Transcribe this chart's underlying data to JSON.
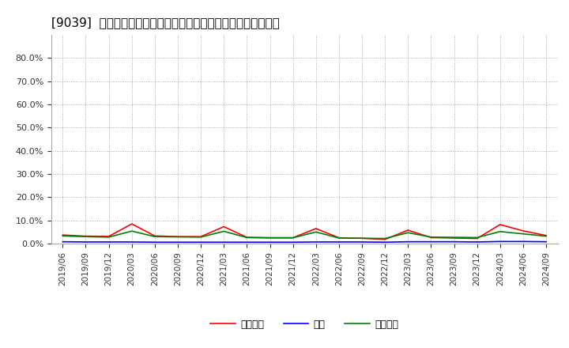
{
  "title": "[9039]  売上債権、在庫、買入債務の総資産に対する比率の推移",
  "x_labels": [
    "2019/06",
    "2019/09",
    "2019/12",
    "2020/03",
    "2020/06",
    "2020/09",
    "2020/12",
    "2021/03",
    "2021/06",
    "2021/09",
    "2021/12",
    "2022/03",
    "2022/06",
    "2022/09",
    "2022/12",
    "2023/03",
    "2023/06",
    "2023/09",
    "2023/12",
    "2024/03",
    "2024/06",
    "2024/09"
  ],
  "uriken": [
    0.037,
    0.032,
    0.031,
    0.085,
    0.033,
    0.03,
    0.03,
    0.073,
    0.027,
    0.025,
    0.025,
    0.065,
    0.025,
    0.023,
    0.018,
    0.058,
    0.026,
    0.024,
    0.022,
    0.082,
    0.055,
    0.035
  ],
  "zaiko": [
    0.008,
    0.007,
    0.007,
    0.007,
    0.006,
    0.006,
    0.006,
    0.006,
    0.006,
    0.006,
    0.006,
    0.007,
    0.007,
    0.007,
    0.006,
    0.008,
    0.008,
    0.008,
    0.007,
    0.009,
    0.009,
    0.008
  ],
  "kaiiremusume": [
    0.033,
    0.03,
    0.028,
    0.054,
    0.03,
    0.029,
    0.028,
    0.053,
    0.026,
    0.025,
    0.025,
    0.05,
    0.024,
    0.023,
    0.022,
    0.047,
    0.028,
    0.027,
    0.026,
    0.052,
    0.042,
    0.032
  ],
  "colors": [
    "#ff0000",
    "#0000ff",
    "#008000"
  ],
  "legend_ja": [
    "売上債権",
    "在庫",
    "買入債務"
  ],
  "ylim": [
    0.0,
    0.9
  ],
  "yticks": [
    0.0,
    0.1,
    0.2,
    0.3,
    0.4,
    0.5,
    0.6,
    0.7,
    0.8
  ],
  "background_color": "#ffffff",
  "grid_color": "#999999",
  "title_fontsize": 11,
  "tick_fontsize": 7.5,
  "ytick_fontsize": 8
}
